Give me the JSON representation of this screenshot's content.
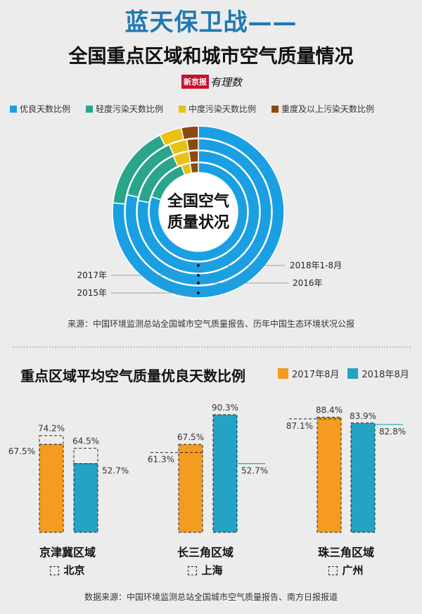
{
  "header": {
    "title_line1": "蓝天保卫战——",
    "title_line2": "全国重点区域和城市空气质量情况",
    "logo_box": "新京报",
    "logo_hand": "有理数"
  },
  "colors": {
    "good": "#1a9fe3",
    "light": "#2aa58c",
    "moderate": "#e8c111",
    "heavy": "#8a4a12",
    "orange": "#f39c1f",
    "teal": "#24a3c4"
  },
  "legend1": [
    {
      "label": "优良天数比例",
      "color": "#1a9fe3"
    },
    {
      "label": "轻度污染天数比例",
      "color": "#2aa58c"
    },
    {
      "label": "中度污染天数比例",
      "color": "#e8c111"
    },
    {
      "label": "重度及以上污染天数比例",
      "color": "#8a4a12"
    }
  ],
  "chart_data": [
    {
      "type": "pie",
      "title": "全国空气质量状况",
      "categories": [
        "优良天数比例",
        "轻度污染天数比例",
        "中度污染天数比例",
        "重度及以上污染天数比例"
      ],
      "series": [
        {
          "name": "2015年",
          "values": [
            76.7,
            15.9,
            4.2,
            3.2
          ]
        },
        {
          "name": "2016年",
          "values": [
            78.8,
            14.7,
            4.0,
            2.5
          ]
        },
        {
          "name": "2017年",
          "values": [
            78.0,
            15.3,
            4.2,
            2.5
          ]
        },
        {
          "name": "2018年1-8月",
          "values": [
            80.0,
            14.4,
            2.9,
            2.7
          ]
        }
      ],
      "center_label": [
        "全国空气",
        "质量状况"
      ]
    },
    {
      "type": "bar",
      "title": "重点区域平均空气质量优良天数比例",
      "series_names": [
        "2017年8月",
        "2018年8月"
      ],
      "groups": [
        {
          "region": "京津冀区域",
          "city": "北京",
          "region_2017": 67.5,
          "city_2017": 74.2,
          "region_2018": 52.7,
          "city_2018": 64.5
        },
        {
          "region": "长三角区域",
          "city": "上海",
          "region_2017": 61.3,
          "city_2017": 67.5,
          "region_2018": 52.7,
          "city_2018": 90.3
        },
        {
          "region": "珠三角区域",
          "city": "广州",
          "region_2017": 88.4,
          "city_2017": 87.1,
          "region_2018": 82.8,
          "city_2018": 83.9
        }
      ]
    }
  ],
  "bar_values": [
    {
      "bar": 67.5,
      "dash": 74.2,
      "bar2": 52.7,
      "dash2": 64.5,
      "lab_bar": "67.5%",
      "lab_dash": "74.2%",
      "lab_bar2": "52.7%",
      "lab_dash2": "64.5%"
    },
    {
      "bar": 67.5,
      "dash": 61.3,
      "bar2": 90.3,
      "dash2": 52.7,
      "lab_bar": "67.5%",
      "lab_dash": "61.3%",
      "lab_bar2": "90.3%",
      "lab_dash2": "52.7%"
    },
    {
      "bar": 88.4,
      "dash": 87.1,
      "bar2": 83.9,
      "dash2": 82.8,
      "lab_bar": "88.4%",
      "lab_dash": "87.1%",
      "lab_bar2": "83.9%",
      "lab_dash2": "82.8%"
    }
  ],
  "source1": "来源：中国环境监测总站全国城市空气质量报告、历年中国生态环境状况公报",
  "source2": "数据来源：中国环境监测总站全国城市空气质量报告、南方日报报道"
}
